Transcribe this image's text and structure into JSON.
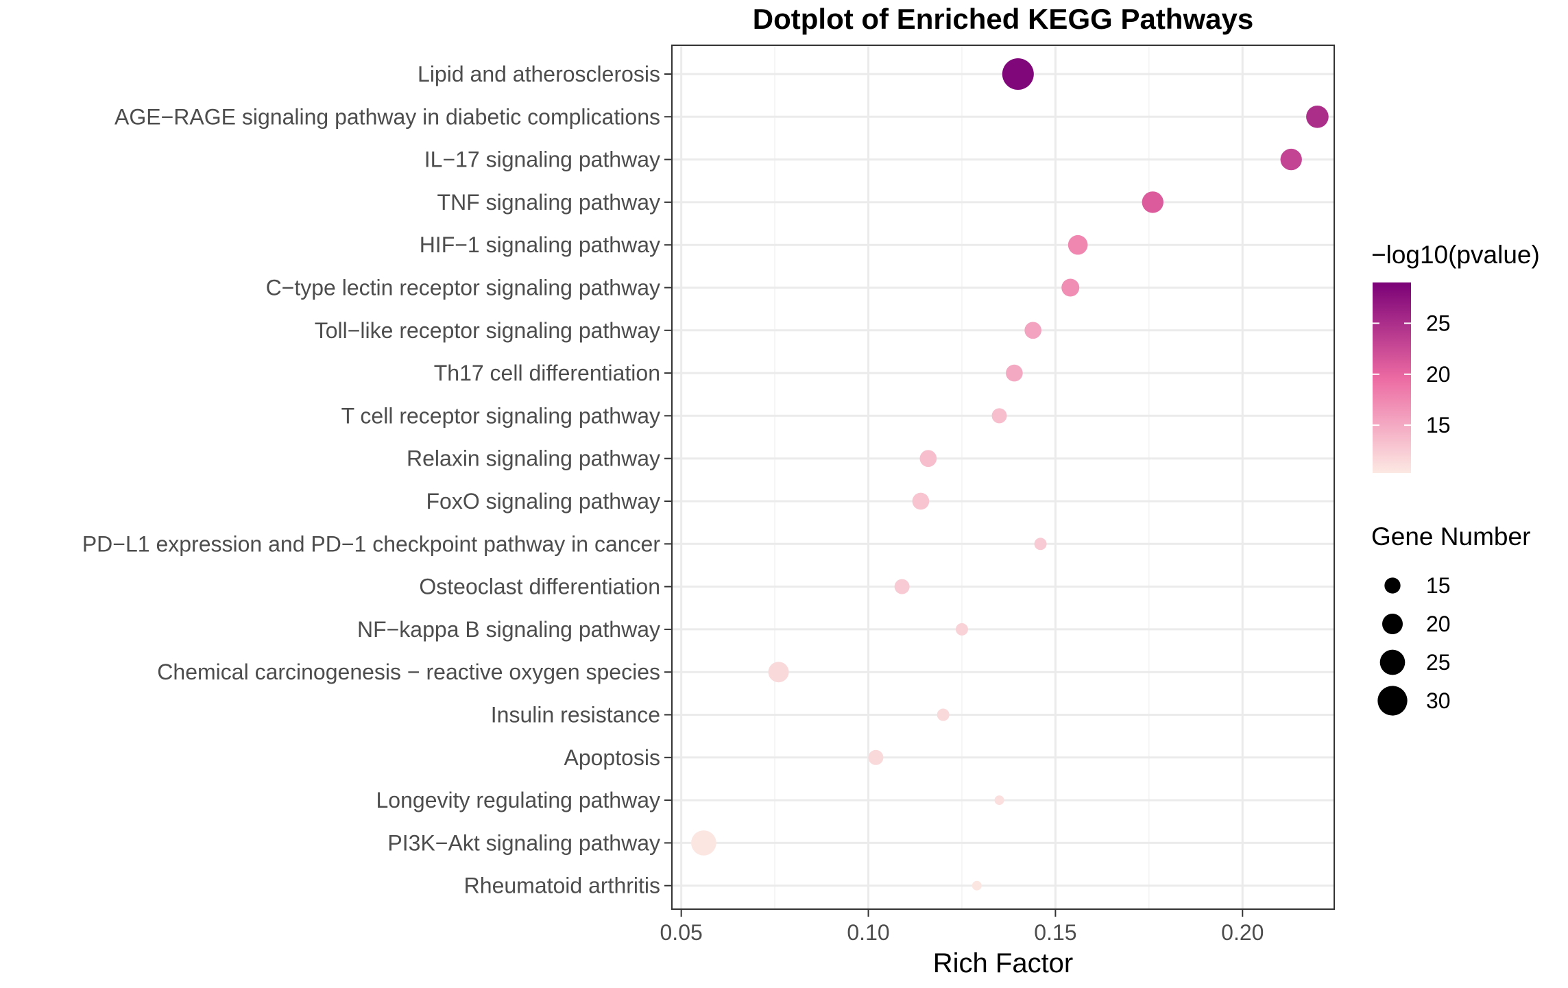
{
  "chart_data": {
    "type": "scatter",
    "title": "Dotplot of Enriched KEGG Pathways",
    "xlabel": "Rich Factor",
    "ylabel": "",
    "xlim": [
      0.0475,
      0.2245
    ],
    "xticks": [
      0.05,
      0.1,
      0.15,
      0.2
    ],
    "xtick_labels": [
      "0.05",
      "0.10",
      "0.15",
      "0.20"
    ],
    "grid": true,
    "categories": [
      "Lipid and atherosclerosis",
      "AGE−RAGE signaling pathway in diabetic complications",
      "IL−17 signaling pathway",
      "TNF signaling pathway",
      "HIF−1 signaling pathway",
      "C−type lectin receptor signaling pathway",
      "Toll−like receptor signaling pathway",
      "Th17 cell differentiation",
      "T cell receptor signaling pathway",
      "Relaxin signaling pathway",
      "FoxO signaling pathway",
      "PD−L1 expression and PD−1 checkpoint pathway in cancer",
      "Osteoclast differentiation",
      "NF−kappa B signaling pathway",
      "Chemical carcinogenesis − reactive oxygen species",
      "Insulin resistance",
      "Apoptosis",
      "Longevity regulating pathway",
      "PI3K−Akt signaling pathway",
      "Rheumatoid arthritis"
    ],
    "points": [
      {
        "x": 0.14,
        "gene_number": 32,
        "neg_log10_p": 28.5
      },
      {
        "x": 0.22,
        "gene_number": 22,
        "neg_log10_p": 25.0
      },
      {
        "x": 0.213,
        "gene_number": 21,
        "neg_log10_p": 23.0
      },
      {
        "x": 0.176,
        "gene_number": 21,
        "neg_log10_p": 21.0
      },
      {
        "x": 0.156,
        "gene_number": 19,
        "neg_log10_p": 17.5
      },
      {
        "x": 0.154,
        "gene_number": 17,
        "neg_log10_p": 17.0
      },
      {
        "x": 0.144,
        "gene_number": 16,
        "neg_log10_p": 15.5
      },
      {
        "x": 0.139,
        "gene_number": 16,
        "neg_log10_p": 15.0
      },
      {
        "x": 0.135,
        "gene_number": 14,
        "neg_log10_p": 13.5
      },
      {
        "x": 0.116,
        "gene_number": 16,
        "neg_log10_p": 13.5
      },
      {
        "x": 0.114,
        "gene_number": 16,
        "neg_log10_p": 13.0
      },
      {
        "x": 0.146,
        "gene_number": 11,
        "neg_log10_p": 12.5
      },
      {
        "x": 0.109,
        "gene_number": 14,
        "neg_log10_p": 12.5
      },
      {
        "x": 0.125,
        "gene_number": 11,
        "neg_log10_p": 12.0
      },
      {
        "x": 0.076,
        "gene_number": 20,
        "neg_log10_p": 11.5
      },
      {
        "x": 0.12,
        "gene_number": 11,
        "neg_log10_p": 11.5
      },
      {
        "x": 0.102,
        "gene_number": 14,
        "neg_log10_p": 11.5
      },
      {
        "x": 0.135,
        "gene_number": 8,
        "neg_log10_p": 11.0
      },
      {
        "x": 0.056,
        "gene_number": 25,
        "neg_log10_p": 10.5
      },
      {
        "x": 0.129,
        "gene_number": 8,
        "neg_log10_p": 10.5
      }
    ],
    "color_legend": {
      "title": "−log10(pvalue)",
      "min": 10.3,
      "max": 29.0,
      "ticks": [
        15,
        20,
        25
      ],
      "tick_labels": [
        "15",
        "20",
        "25"
      ],
      "low_color": "#FCE9E3",
      "mid_color": "#EC6AA2",
      "high_color": "#7A0177"
    },
    "size_legend": {
      "title": "Gene Number",
      "values": [
        15,
        20,
        25,
        30
      ],
      "labels": [
        "15",
        "20",
        "25",
        "30"
      ]
    },
    "legend_position": "right"
  }
}
